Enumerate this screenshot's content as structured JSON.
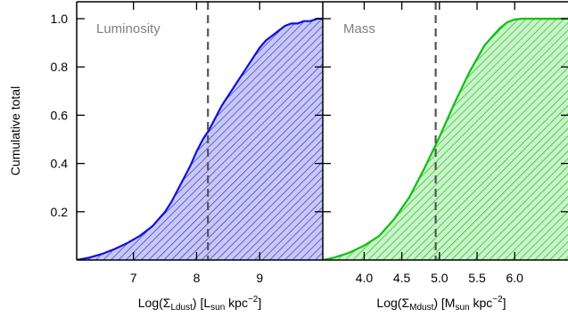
{
  "chart_data": [
    {
      "type": "area",
      "panel_label": "Luminosity",
      "xlabel_main": "Log(Σ",
      "xlabel_sub": "Ldust",
      "xlabel_mid": ") [L",
      "xlabel_sub2": "sun",
      "xlabel_mid2": " kpc",
      "xlabel_sup": "−2",
      "xlabel_end": "]",
      "ylabel": "Cumulative total",
      "xlim": [
        6.1,
        10.0
      ],
      "ylim": [
        0.0,
        1.07
      ],
      "x_ticks": [
        7,
        8,
        9
      ],
      "x_tick_labels": [
        "7",
        "8",
        "9"
      ],
      "y_ticks": [
        0.2,
        0.4,
        0.6,
        0.8,
        1.0
      ],
      "y_tick_labels": [
        "0.2",
        "0.4",
        "0.6",
        "0.8",
        "1.0"
      ],
      "vline_x": 8.18,
      "color": "#1010e0",
      "fill_color": "#c8c8f4",
      "hatch_color": "#2a2ad0",
      "x": [
        6.1,
        6.3,
        6.5,
        6.7,
        6.9,
        7.1,
        7.3,
        7.5,
        7.6,
        7.7,
        7.8,
        7.9,
        8.0,
        8.1,
        8.2,
        8.3,
        8.4,
        8.5,
        8.6,
        8.7,
        8.8,
        8.9,
        9.0,
        9.1,
        9.2,
        9.3,
        9.4,
        9.5,
        9.6,
        9.7,
        9.8,
        9.92,
        10.0
      ],
      "y": [
        0.0,
        0.01,
        0.025,
        0.045,
        0.07,
        0.1,
        0.14,
        0.2,
        0.24,
        0.29,
        0.34,
        0.39,
        0.45,
        0.5,
        0.54,
        0.59,
        0.64,
        0.68,
        0.72,
        0.76,
        0.8,
        0.84,
        0.88,
        0.91,
        0.93,
        0.95,
        0.97,
        0.98,
        0.98,
        0.99,
        0.99,
        1.0,
        1.0
      ]
    },
    {
      "type": "area",
      "panel_label": "Mass",
      "xlabel_main": "Log(Σ",
      "xlabel_sub": "Mdust",
      "xlabel_mid": ") [M",
      "xlabel_sub2": "sun",
      "xlabel_mid2": " kpc",
      "xlabel_sup": "−2",
      "xlabel_end": "]",
      "xlim": [
        3.45,
        6.72
      ],
      "ylim": [
        0.0,
        1.07
      ],
      "x_ticks": [
        4.0,
        4.5,
        5.0,
        5.5,
        6.0
      ],
      "x_tick_labels": [
        "4.0",
        "4.5",
        "5.0",
        "5.5",
        "6.0"
      ],
      "y_ticks": [
        0.2,
        0.4,
        0.6,
        0.8,
        1.0
      ],
      "vline_x": 4.95,
      "color": "#10c010",
      "fill_color": "#c8f4c8",
      "hatch_color": "#20b020",
      "x": [
        3.45,
        3.6,
        3.8,
        4.0,
        4.2,
        4.4,
        4.6,
        4.8,
        5.0,
        5.2,
        5.4,
        5.6,
        5.8,
        5.9,
        6.0,
        6.1,
        6.2,
        6.72
      ],
      "y": [
        0.0,
        0.01,
        0.03,
        0.06,
        0.1,
        0.17,
        0.26,
        0.38,
        0.51,
        0.65,
        0.78,
        0.89,
        0.96,
        0.985,
        0.997,
        1.0,
        1.0,
        1.0
      ]
    }
  ]
}
